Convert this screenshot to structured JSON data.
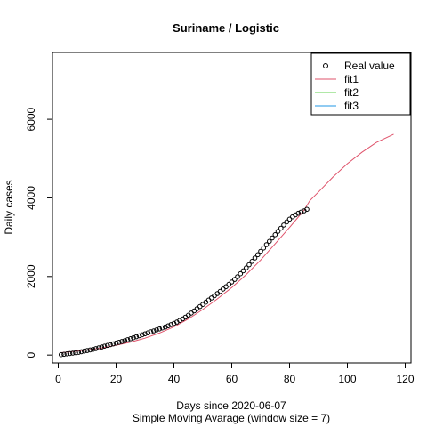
{
  "chart_data": {
    "type": "line",
    "title": "Suriname / Logistic",
    "xlabel": "Days since 2020-06-07",
    "xlabel2": "Simple Moving Avarage (window size = 7)",
    "ylabel": "Daily cases",
    "xlim": [
      -2,
      122
    ],
    "ylim": [
      -200,
      7700
    ],
    "x_ticks": [
      0,
      20,
      40,
      60,
      80,
      100,
      120
    ],
    "y_ticks": [
      0,
      2000,
      4000,
      6000
    ],
    "legend": {
      "position": "top-right",
      "entries": [
        {
          "label": "Real value",
          "type": "point",
          "color": "#000000"
        },
        {
          "label": "fit1",
          "type": "line",
          "color": "#DF536B"
        },
        {
          "label": "fit2",
          "type": "line",
          "color": "#61D04F"
        },
        {
          "label": "fit3",
          "type": "line",
          "color": "#2297E6"
        }
      ]
    },
    "series": [
      {
        "name": "Real value",
        "kind": "points",
        "color": "#000000",
        "x": [
          1,
          2,
          3,
          4,
          5,
          6,
          7,
          8,
          9,
          10,
          11,
          12,
          13,
          14,
          15,
          16,
          17,
          18,
          19,
          20,
          21,
          22,
          23,
          24,
          25,
          26,
          27,
          28,
          29,
          30,
          31,
          32,
          33,
          34,
          35,
          36,
          37,
          38,
          39,
          40,
          41,
          42,
          43,
          44,
          45,
          46,
          47,
          48,
          49,
          50,
          51,
          52,
          53,
          54,
          55,
          56,
          57,
          58,
          59,
          60,
          61,
          62,
          63,
          64,
          65,
          66,
          67,
          68,
          69,
          70,
          71,
          72,
          73,
          74,
          75,
          76,
          77,
          78,
          79,
          80,
          81,
          82,
          83,
          84,
          85,
          86
        ],
        "y": [
          10,
          20,
          30,
          40,
          50,
          60,
          70,
          85,
          100,
          115,
          130,
          145,
          165,
          185,
          205,
          225,
          245,
          265,
          285,
          305,
          325,
          345,
          365,
          390,
          415,
          440,
          465,
          490,
          515,
          540,
          565,
          590,
          615,
          640,
          665,
          690,
          715,
          745,
          775,
          805,
          840,
          880,
          920,
          965,
          1015,
          1070,
          1125,
          1180,
          1235,
          1290,
          1345,
          1400,
          1455,
          1510,
          1565,
          1620,
          1680,
          1740,
          1800,
          1860,
          1925,
          1995,
          2070,
          2145,
          2220,
          2300,
          2385,
          2470,
          2555,
          2640,
          2725,
          2810,
          2895,
          2980,
          3065,
          3150,
          3230,
          3310,
          3390,
          3460,
          3520,
          3570,
          3610,
          3640,
          3670,
          3710
        ]
      },
      {
        "name": "fit1",
        "kind": "line",
        "color": "#DF536B",
        "x": [
          1,
          5,
          10,
          15,
          20,
          25,
          30,
          35,
          40,
          45,
          50,
          55,
          60,
          65,
          70,
          75,
          80,
          85,
          87,
          90,
          95,
          100,
          105,
          110,
          116
        ],
        "y": [
          60,
          90,
          130,
          180,
          250,
          330,
          430,
          560,
          720,
          920,
          1160,
          1430,
          1720,
          2050,
          2420,
          2830,
          3250,
          3690,
          3930,
          4150,
          4530,
          4870,
          5160,
          5410,
          5620
        ]
      }
    ]
  }
}
